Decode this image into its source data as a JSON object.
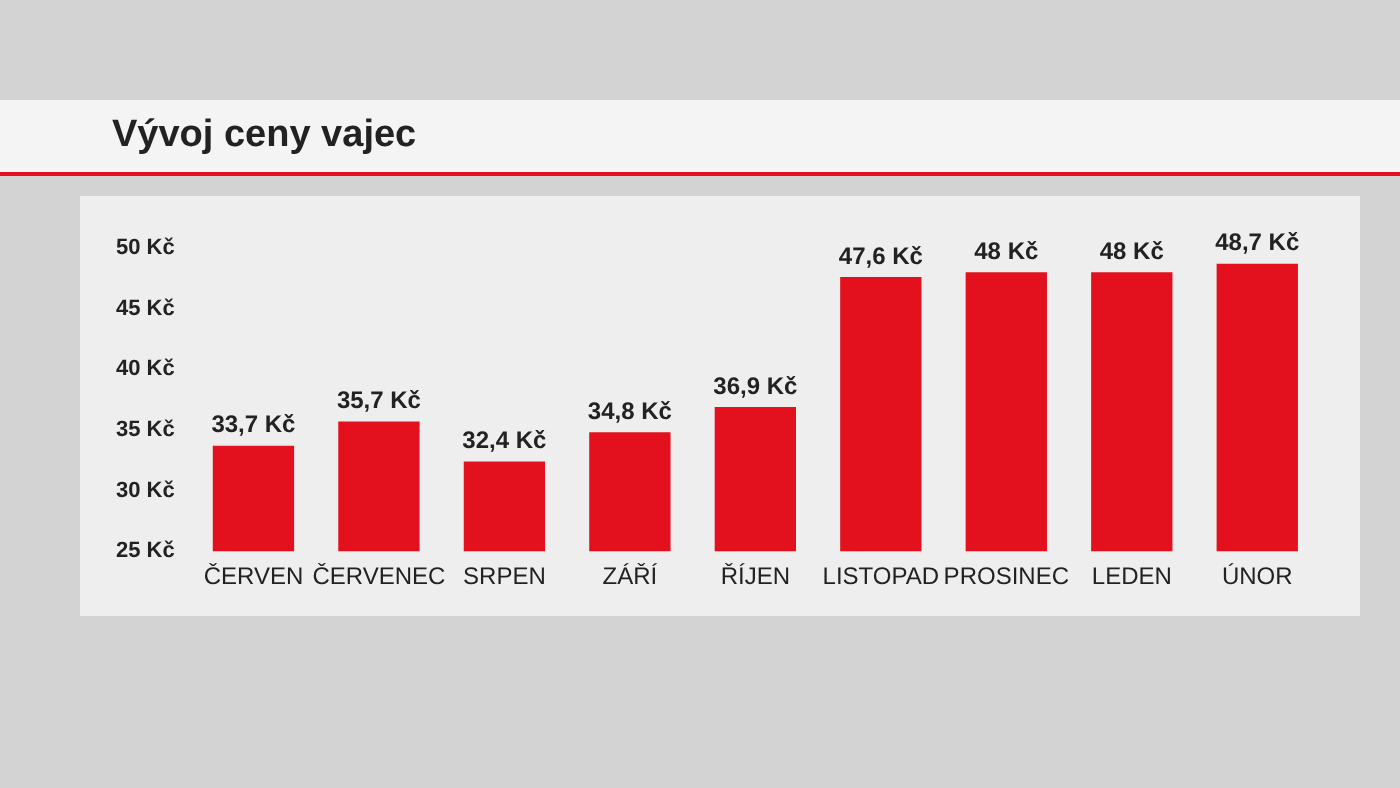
{
  "chart_data": {
    "type": "bar",
    "title": "Vývoj ceny vajec",
    "categories": [
      "ČERVEN",
      "ČERVENEC",
      "SRPEN",
      "ZÁŘÍ",
      "ŘÍJEN",
      "LISTOPAD",
      "PROSINEC",
      "LEDEN",
      "ÚNOR"
    ],
    "values": [
      33.7,
      35.7,
      32.4,
      34.8,
      36.9,
      47.6,
      48,
      48,
      48.7
    ],
    "value_labels": [
      "33,7 Kč",
      "35,7 Kč",
      "32,4 Kč",
      "34,8 Kč",
      "36,9 Kč",
      "47,6 Kč",
      "48 Kč",
      "48 Kč",
      "48,7 Kč"
    ],
    "color": "#e3101e",
    "ylim": [
      25,
      50
    ],
    "yticks": [
      {
        "value": 25,
        "label": "25 Kč"
      },
      {
        "value": 30,
        "label": "30 Kč"
      },
      {
        "value": 35,
        "label": "35 Kč"
      },
      {
        "value": 40,
        "label": "40 Kč"
      },
      {
        "value": 45,
        "label": "45 Kč"
      },
      {
        "value": 50,
        "label": "50 Kč"
      }
    ]
  }
}
